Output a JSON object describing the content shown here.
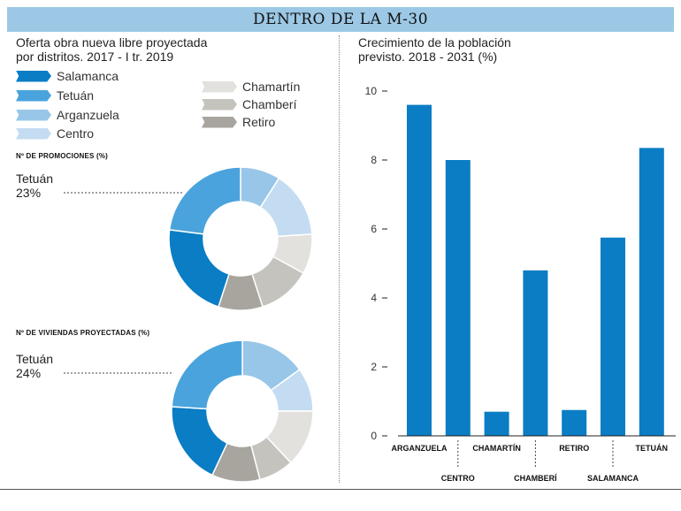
{
  "header": {
    "title": "DENTRO DE LA M-30"
  },
  "left": {
    "subtitle_line1": "Oferta obra nueva libre proyectada",
    "subtitle_line2": "por distritos. 2017 - I tr. 2019",
    "legend": [
      {
        "label": "Salamanca",
        "color": "#0a7dc4"
      },
      {
        "label": "Tetuán",
        "color": "#4aa3dc"
      },
      {
        "label": "Arganzuela",
        "color": "#98c6e8"
      },
      {
        "label": "Centro",
        "color": "#c4dcf1"
      },
      {
        "label": "Chamartín",
        "color": "#e2e1dd"
      },
      {
        "label": "Chamberí",
        "color": "#c5c3bd"
      },
      {
        "label": "Retiro",
        "color": "#a8a59f"
      }
    ],
    "donut1": {
      "heading": "Nº DE PROMOCIONES (%)",
      "callout_name": "Tetuán",
      "callout_value": "23%"
    },
    "donut2": {
      "heading": "Nº DE VIVIENDAS PROYECTADAS (%)",
      "callout_name": "Tetuán",
      "callout_value": "24%"
    }
  },
  "right": {
    "subtitle_line1": "Crecimiento de la población",
    "subtitle_line2": "previsto. 2018 - 2031 (%)"
  },
  "chart_data": [
    {
      "type": "pie",
      "title": "Nº DE PROMOCIONES (%)",
      "categories": [
        "Arganzuela",
        "Centro",
        "Chamartín",
        "Chamberí",
        "Retiro",
        "Salamanca",
        "Tetuán"
      ],
      "values": [
        9,
        15,
        9,
        12,
        10,
        22,
        23
      ],
      "colors": [
        "#98c6e8",
        "#c4dcf1",
        "#e2e1dd",
        "#c5c3bd",
        "#a8a59f",
        "#0a7dc4",
        "#4aa3dc"
      ]
    },
    {
      "type": "pie",
      "title": "Nº DE VIVIENDAS PROYECTADAS (%)",
      "categories": [
        "Arganzuela",
        "Centro",
        "Chamartín",
        "Chamberí",
        "Retiro",
        "Salamanca",
        "Tetuán"
      ],
      "values": [
        15,
        10,
        13,
        8,
        11,
        19,
        24
      ],
      "colors": [
        "#98c6e8",
        "#c4dcf1",
        "#e2e1dd",
        "#c5c3bd",
        "#a8a59f",
        "#0a7dc4",
        "#4aa3dc"
      ]
    },
    {
      "type": "bar",
      "title": "Crecimiento de la población previsto. 2018 - 2031 (%)",
      "categories": [
        "ARGANZUELA",
        "CENTRO",
        "CHAMARTÍN",
        "CHAMBERÍ",
        "RETIRO",
        "SALAMANCA",
        "TETUÁN"
      ],
      "values": [
        9.6,
        8.0,
        0.7,
        4.8,
        0.75,
        5.75,
        8.35
      ],
      "yticks": [
        0,
        2,
        4,
        6,
        8,
        10
      ],
      "ylim": [
        0,
        10
      ],
      "color": "#0a7dc4",
      "grid": false
    }
  ]
}
